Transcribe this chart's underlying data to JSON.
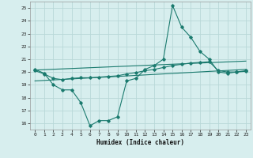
{
  "title": "",
  "xlabel": "Humidex (Indice chaleur)",
  "ylabel": "",
  "background_color": "#d7eeee",
  "line_color": "#1a7a6e",
  "grid_color": "#c8e0e0",
  "xlim": [
    -0.5,
    23.5
  ],
  "ylim": [
    15.5,
    25.5
  ],
  "yticks": [
    16,
    17,
    18,
    19,
    20,
    21,
    22,
    23,
    24,
    25
  ],
  "xticks": [
    0,
    1,
    2,
    3,
    4,
    5,
    6,
    7,
    8,
    9,
    10,
    11,
    12,
    13,
    14,
    15,
    16,
    17,
    18,
    19,
    20,
    21,
    22,
    23
  ],
  "series_main": {
    "x": [
      0,
      1,
      2,
      3,
      4,
      5,
      6,
      7,
      8,
      9,
      10,
      11,
      12,
      13,
      14,
      15,
      16,
      17,
      18,
      19,
      20,
      21,
      22,
      23
    ],
    "y": [
      20.2,
      19.9,
      19.0,
      18.6,
      18.6,
      17.6,
      15.8,
      16.2,
      16.2,
      16.5,
      19.3,
      19.5,
      20.2,
      20.5,
      21.0,
      25.2,
      23.5,
      22.7,
      21.6,
      21.0,
      20.0,
      19.9,
      20.0,
      20.1
    ]
  },
  "series_smooth": {
    "x": [
      0,
      1,
      2,
      3,
      4,
      5,
      6,
      7,
      8,
      9,
      10,
      11,
      12,
      13,
      14,
      15,
      16,
      17,
      18,
      19,
      20,
      21,
      22,
      23
    ],
    "y": [
      20.1,
      19.85,
      19.5,
      19.4,
      19.5,
      19.55,
      19.55,
      19.6,
      19.65,
      19.7,
      19.85,
      19.95,
      20.1,
      20.2,
      20.35,
      20.5,
      20.6,
      20.7,
      20.75,
      20.8,
      20.1,
      20.0,
      20.0,
      20.05
    ]
  },
  "line_lower": {
    "x": [
      0,
      23
    ],
    "y": [
      19.3,
      20.2
    ]
  },
  "line_upper": {
    "x": [
      0,
      23
    ],
    "y": [
      20.15,
      20.85
    ]
  }
}
